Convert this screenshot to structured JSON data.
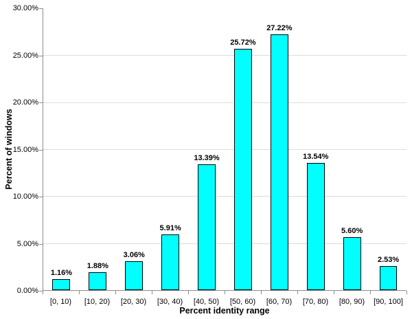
{
  "chart_data": {
    "type": "bar",
    "title": "",
    "xlabel": "Percent identity range",
    "ylabel": "Percent of windows",
    "categories": [
      "[0, 10)",
      "[10, 20)",
      "[20, 30)",
      "[30, 40)",
      "[40, 50)",
      "[50, 60)",
      "[60, 70)",
      "[70, 80)",
      "[80, 90)",
      "[90, 100]"
    ],
    "values": [
      1.16,
      1.88,
      3.06,
      5.91,
      13.39,
      25.72,
      27.22,
      13.54,
      5.6,
      2.53
    ],
    "value_labels": [
      "1.16%",
      "1.88%",
      "3.06%",
      "5.91%",
      "13.39%",
      "25.72%",
      "27.22%",
      "13.54%",
      "5.60%",
      "2.53%"
    ],
    "yticks": [
      "0.00%",
      "5.00%",
      "10.00%",
      "15.00%",
      "20.00%",
      "25.00%",
      "30.00%"
    ],
    "ytick_step": 5,
    "ylim": [
      0,
      30
    ],
    "grid": true,
    "legend": "none",
    "colors": {
      "bar_fill": "#00FFFF",
      "bar_border": "#000000",
      "gridline": "#DCDCDC",
      "axis": "#8C8C8C",
      "text": "#000000",
      "background": "#FFFFFF"
    }
  }
}
